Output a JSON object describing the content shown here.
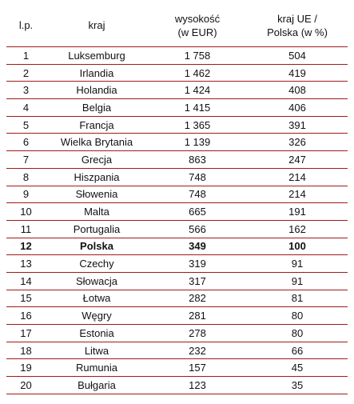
{
  "table": {
    "headers": {
      "lp": "l.p.",
      "country": "kraj",
      "amount_line1": "wysokość",
      "amount_line2": "(w EUR)",
      "ratio_line1": "kraj UE /",
      "ratio_line2": "Polska (w %)"
    },
    "rows": [
      {
        "lp": "1",
        "country": "Luksemburg",
        "amount": "1 758",
        "ratio": "504"
      },
      {
        "lp": "2",
        "country": "Irlandia",
        "amount": "1 462",
        "ratio": "419"
      },
      {
        "lp": "3",
        "country": "Holandia",
        "amount": "1 424",
        "ratio": "408"
      },
      {
        "lp": "4",
        "country": "Belgia",
        "amount": "1 415",
        "ratio": "406"
      },
      {
        "lp": "5",
        "country": "Francja",
        "amount": "1 365",
        "ratio": "391"
      },
      {
        "lp": "6",
        "country": "Wielka Brytania",
        "amount": "1 139",
        "ratio": "326"
      },
      {
        "lp": "7",
        "country": "Grecja",
        "amount": "863",
        "ratio": "247"
      },
      {
        "lp": "8",
        "country": "Hiszpania",
        "amount": "748",
        "ratio": "214"
      },
      {
        "lp": "9",
        "country": "Słowenia",
        "amount": "748",
        "ratio": "214"
      },
      {
        "lp": "10",
        "country": "Malta",
        "amount": "665",
        "ratio": "191"
      },
      {
        "lp": "11",
        "country": "Portugalia",
        "amount": "566",
        "ratio": "162"
      },
      {
        "lp": "12",
        "country": "Polska",
        "amount": "349",
        "ratio": "100"
      },
      {
        "lp": "13",
        "country": "Czechy",
        "amount": "319",
        "ratio": "91"
      },
      {
        "lp": "14",
        "country": "Słowacja",
        "amount": "317",
        "ratio": "91"
      },
      {
        "lp": "15",
        "country": "Łotwa",
        "amount": "282",
        "ratio": "81"
      },
      {
        "lp": "16",
        "country": "Węgry",
        "amount": "281",
        "ratio": "80"
      },
      {
        "lp": "17",
        "country": "Estonia",
        "amount": "278",
        "ratio": "80"
      },
      {
        "lp": "18",
        "country": "Litwa",
        "amount": "232",
        "ratio": "66"
      },
      {
        "lp": "19",
        "country": "Rumunia",
        "amount": "157",
        "ratio": "45"
      },
      {
        "lp": "20",
        "country": "Bułgaria",
        "amount": "123",
        "ratio": "35"
      }
    ],
    "highlight_row": "12",
    "border_color": "#a01a1a"
  }
}
